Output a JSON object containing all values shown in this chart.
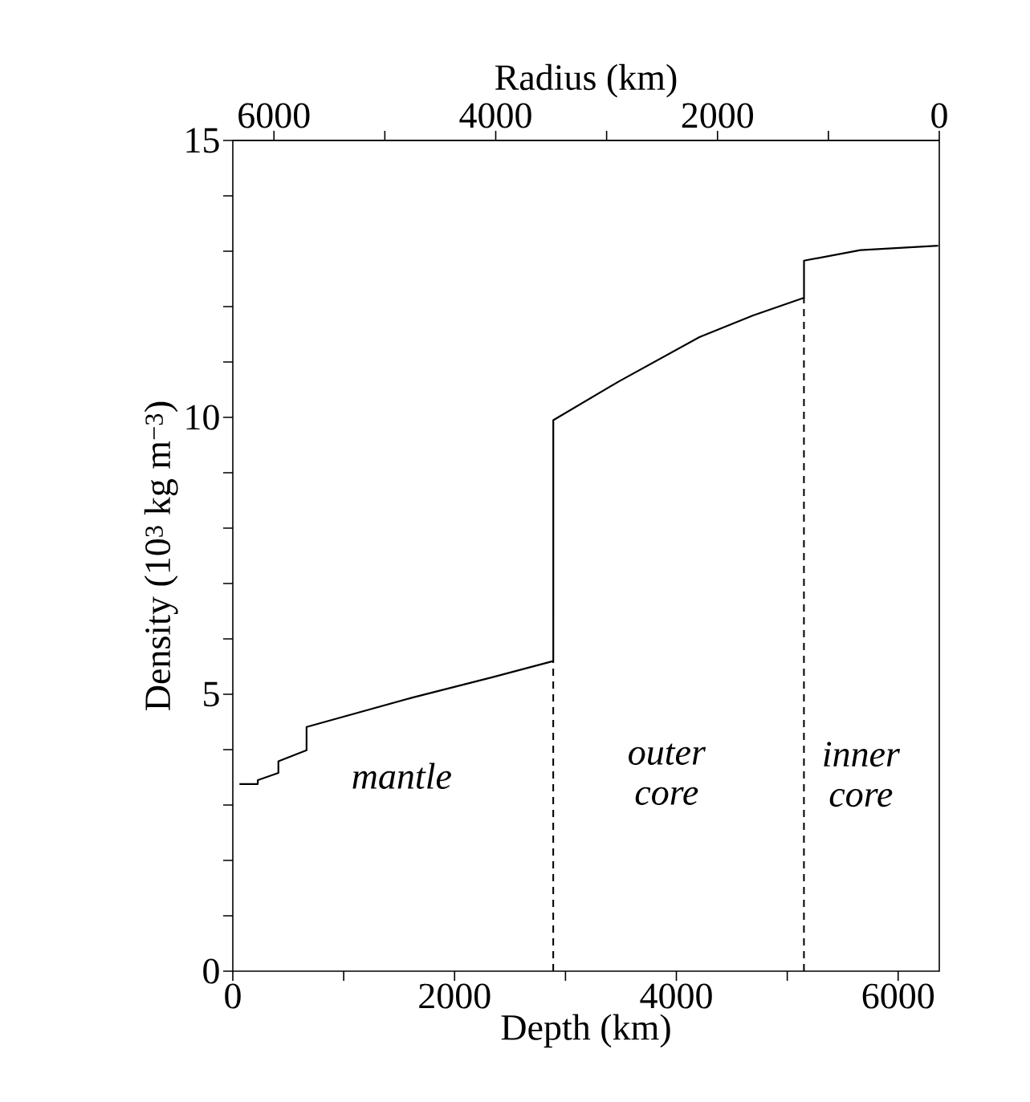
{
  "chart_data": {
    "type": "line",
    "xlabel": "Depth (km)",
    "ylabel": "Density (10$^{3}$ kg m$^{−3}$)",
    "x2label": "Radius (km)",
    "xlim": [
      0,
      6371
    ],
    "xticks": [
      0,
      {
        "value": 1000,
        "label": null
      },
      2000,
      {
        "value": 3000,
        "label": null
      },
      4000,
      {
        "value": 5000,
        "label": null
      },
      6000
    ],
    "x2lim": [
      6371,
      0
    ],
    "x2ticks": [
      6000,
      {
        "value": 5000,
        "label": null
      },
      4000,
      {
        "value": 3000,
        "label": null
      },
      2000,
      {
        "value": 1000,
        "label": null
      },
      0
    ],
    "ylim": [
      0,
      15
    ],
    "yticks": [
      0,
      {
        "value": 1,
        "label": null
      },
      {
        "value": 2,
        "label": null
      },
      {
        "value": 3,
        "label": null
      },
      {
        "value": 4,
        "label": null
      },
      5,
      {
        "value": 6,
        "label": null
      },
      {
        "value": 7,
        "label": null
      },
      {
        "value": 8,
        "label": null
      },
      {
        "value": 9,
        "label": null
      },
      10,
      {
        "value": 11,
        "label": null
      },
      {
        "value": 12,
        "label": null
      },
      {
        "value": 13,
        "label": null
      },
      {
        "value": 14,
        "label": null
      },
      15
    ],
    "marker": "none",
    "series": [
      {
        "color": "#000000",
        "line_style": "solid",
        "x": [
          60,
          225,
          225,
          411,
          411,
          665,
          665,
          1620,
          2345,
          2890,
          2890,
          3483,
          4208,
          4692,
          5151,
          5151,
          5659,
          6361
        ],
        "values": [
          3.38,
          3.38,
          3.45,
          3.58,
          3.79,
          3.99,
          4.41,
          4.94,
          5.31,
          5.6,
          9.95,
          10.65,
          11.45,
          11.84,
          12.16,
          12.83,
          13.02,
          13.1
        ]
      },
      {
        "color": "#000000",
        "line_style": "dashed",
        "x": [
          2890,
          2890
        ],
        "values": [
          0,
          5.6
        ]
      },
      {
        "color": "#000000",
        "line_style": "dashed",
        "x": [
          5151,
          5151
        ],
        "values": [
          0,
          12.16
        ]
      }
    ],
    "annotations": [
      "mantle",
      "outer core",
      "inner core"
    ]
  }
}
